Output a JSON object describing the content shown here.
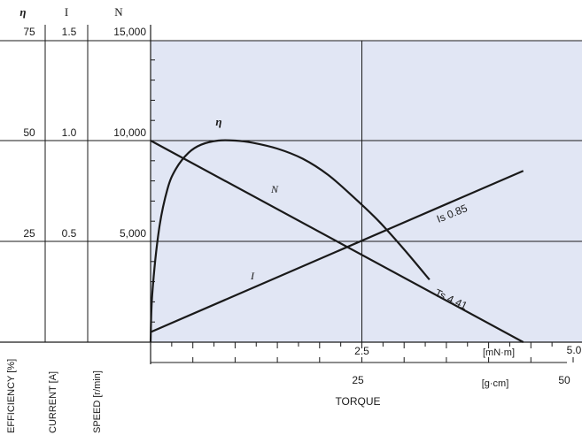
{
  "chart_data": {
    "type": "line",
    "axes": {
      "efficiency": {
        "symbol": "η",
        "label": "EFFICIENCY [%]",
        "ticks": [
          "75",
          "50",
          "25"
        ],
        "range": [
          0,
          75
        ]
      },
      "current": {
        "symbol": "I",
        "label": "CURRENT [A]",
        "ticks": [
          "1.5",
          "1.0",
          "0.5"
        ],
        "range": [
          0,
          1.5
        ]
      },
      "speed": {
        "symbol": "N",
        "label": "SPEED [r/min]",
        "ticks": [
          "15,000",
          "10,000",
          "5,000"
        ],
        "range": [
          0,
          15000
        ]
      },
      "torque_mnm": {
        "unit": "[mN·m]",
        "ticks": [
          "2.5",
          "5.0"
        ],
        "range": [
          0,
          5.0
        ]
      },
      "torque_gcm": {
        "unit": "[g·cm]",
        "ticks": [
          "25",
          "50"
        ],
        "range": [
          0,
          51
        ]
      },
      "xlabel": "TORQUE"
    },
    "series": [
      {
        "name": "η",
        "axis": "efficiency",
        "x": [
          0,
          0.02,
          0.1,
          0.2,
          0.3,
          0.45,
          0.6,
          0.8,
          1.0,
          1.2,
          1.5,
          1.8,
          2.1,
          2.4,
          2.7,
          3.0,
          3.3
        ],
        "y": [
          0,
          12,
          28,
          38,
          43,
          47,
          49,
          50,
          50,
          49.5,
          48,
          45.5,
          41.5,
          36,
          30,
          23,
          15.5
        ]
      },
      {
        "name": "N",
        "axis": "speed",
        "x": [
          0,
          4.41
        ],
        "y": [
          10000,
          0
        ]
      },
      {
        "name": "I",
        "axis": "current",
        "x": [
          0,
          4.41
        ],
        "y": [
          0.05,
          0.85
        ]
      }
    ],
    "annotations": {
      "is_label": "Is 0.85",
      "ts_label": "Ts 4.41"
    },
    "grid": true
  }
}
